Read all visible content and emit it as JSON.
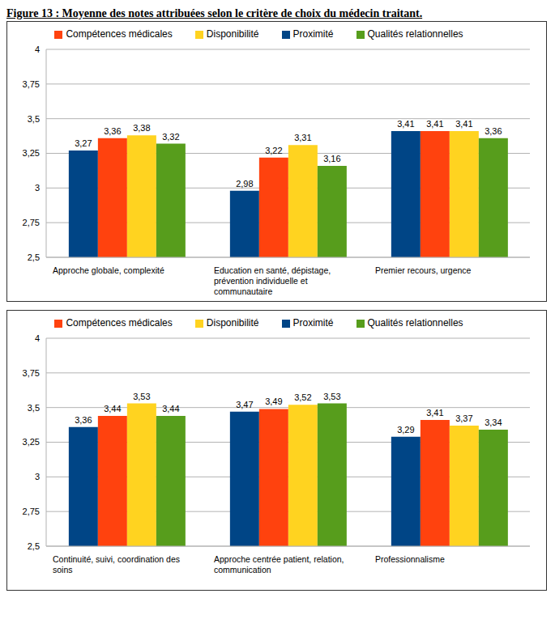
{
  "chart_data": [
    {
      "type": "bar",
      "title": "Figure 13 : Moyenne des notes attribuées selon le critère de choix du médecin traitant.",
      "categories": [
        "Approche globale, complexité",
        "Education en santé, dépistage, prévention individuelle et communautaire",
        "Premier recours, urgence"
      ],
      "series": [
        {
          "name": "Proximité",
          "color": "#004586",
          "values": [
            3.27,
            2.98,
            3.41
          ],
          "value_labels": [
            "3,27",
            "2,98",
            "3,41"
          ]
        },
        {
          "name": "Compétences médicales",
          "color": "#ff420e",
          "values": [
            3.36,
            3.22,
            3.41
          ],
          "value_labels": [
            "3,36",
            "3,22",
            "3,41"
          ]
        },
        {
          "name": "Disponibilité",
          "color": "#ffd320",
          "values": [
            3.38,
            3.31,
            3.41
          ],
          "value_labels": [
            "3,38",
            "3,31",
            "3,41"
          ]
        },
        {
          "name": "Qualités relationnelles",
          "color": "#579d1c",
          "values": [
            3.32,
            3.16,
            3.36
          ],
          "value_labels": [
            "3,32",
            "3,16",
            "3,36"
          ]
        }
      ],
      "ylim": [
        2.5,
        4
      ],
      "yticks": [
        {
          "value": 2.5,
          "label": "2,5"
        },
        {
          "value": 2.75,
          "label": "2,75"
        },
        3,
        {
          "value": 3.25,
          "label": "3,25"
        },
        {
          "value": 3.5,
          "label": "3,5"
        },
        {
          "value": 3.75,
          "label": "3,75"
        },
        4
      ],
      "grid": true,
      "legend": "top",
      "data_labels": true
    },
    {
      "type": "bar",
      "categories": [
        "Continuité, suivi, coordination des soins",
        "Approche centrée patient, relation, communication",
        "Professionnalisme"
      ],
      "series": [
        {
          "name": "Proximité",
          "color": "#004586",
          "values": [
            3.36,
            3.47,
            3.29
          ],
          "value_labels": [
            "3,36",
            "3,47",
            "3,29"
          ]
        },
        {
          "name": "Compétences médicales",
          "color": "#ff420e",
          "values": [
            3.44,
            3.49,
            3.41
          ],
          "value_labels": [
            "3,44",
            "3,49",
            "3,41"
          ]
        },
        {
          "name": "Disponibilité",
          "color": "#ffd320",
          "values": [
            3.53,
            3.52,
            3.37
          ],
          "value_labels": [
            "3,53",
            "3,52",
            "3,37"
          ]
        },
        {
          "name": "Qualités relationnelles",
          "color": "#579d1c",
          "values": [
            3.44,
            3.53,
            3.34
          ],
          "value_labels": [
            "3,44",
            "3,53",
            "3,34"
          ]
        }
      ],
      "ylim": [
        2.5,
        4
      ],
      "yticks": [
        {
          "value": 2.5,
          "label": "2,5"
        },
        {
          "value": 2.75,
          "label": "2,75"
        },
        3,
        {
          "value": 3.25,
          "label": "3,25"
        },
        {
          "value": 3.5,
          "label": "3,5"
        },
        {
          "value": 3.75,
          "label": "3,75"
        },
        4
      ],
      "grid": true,
      "legend": "top",
      "data_labels": true
    }
  ]
}
